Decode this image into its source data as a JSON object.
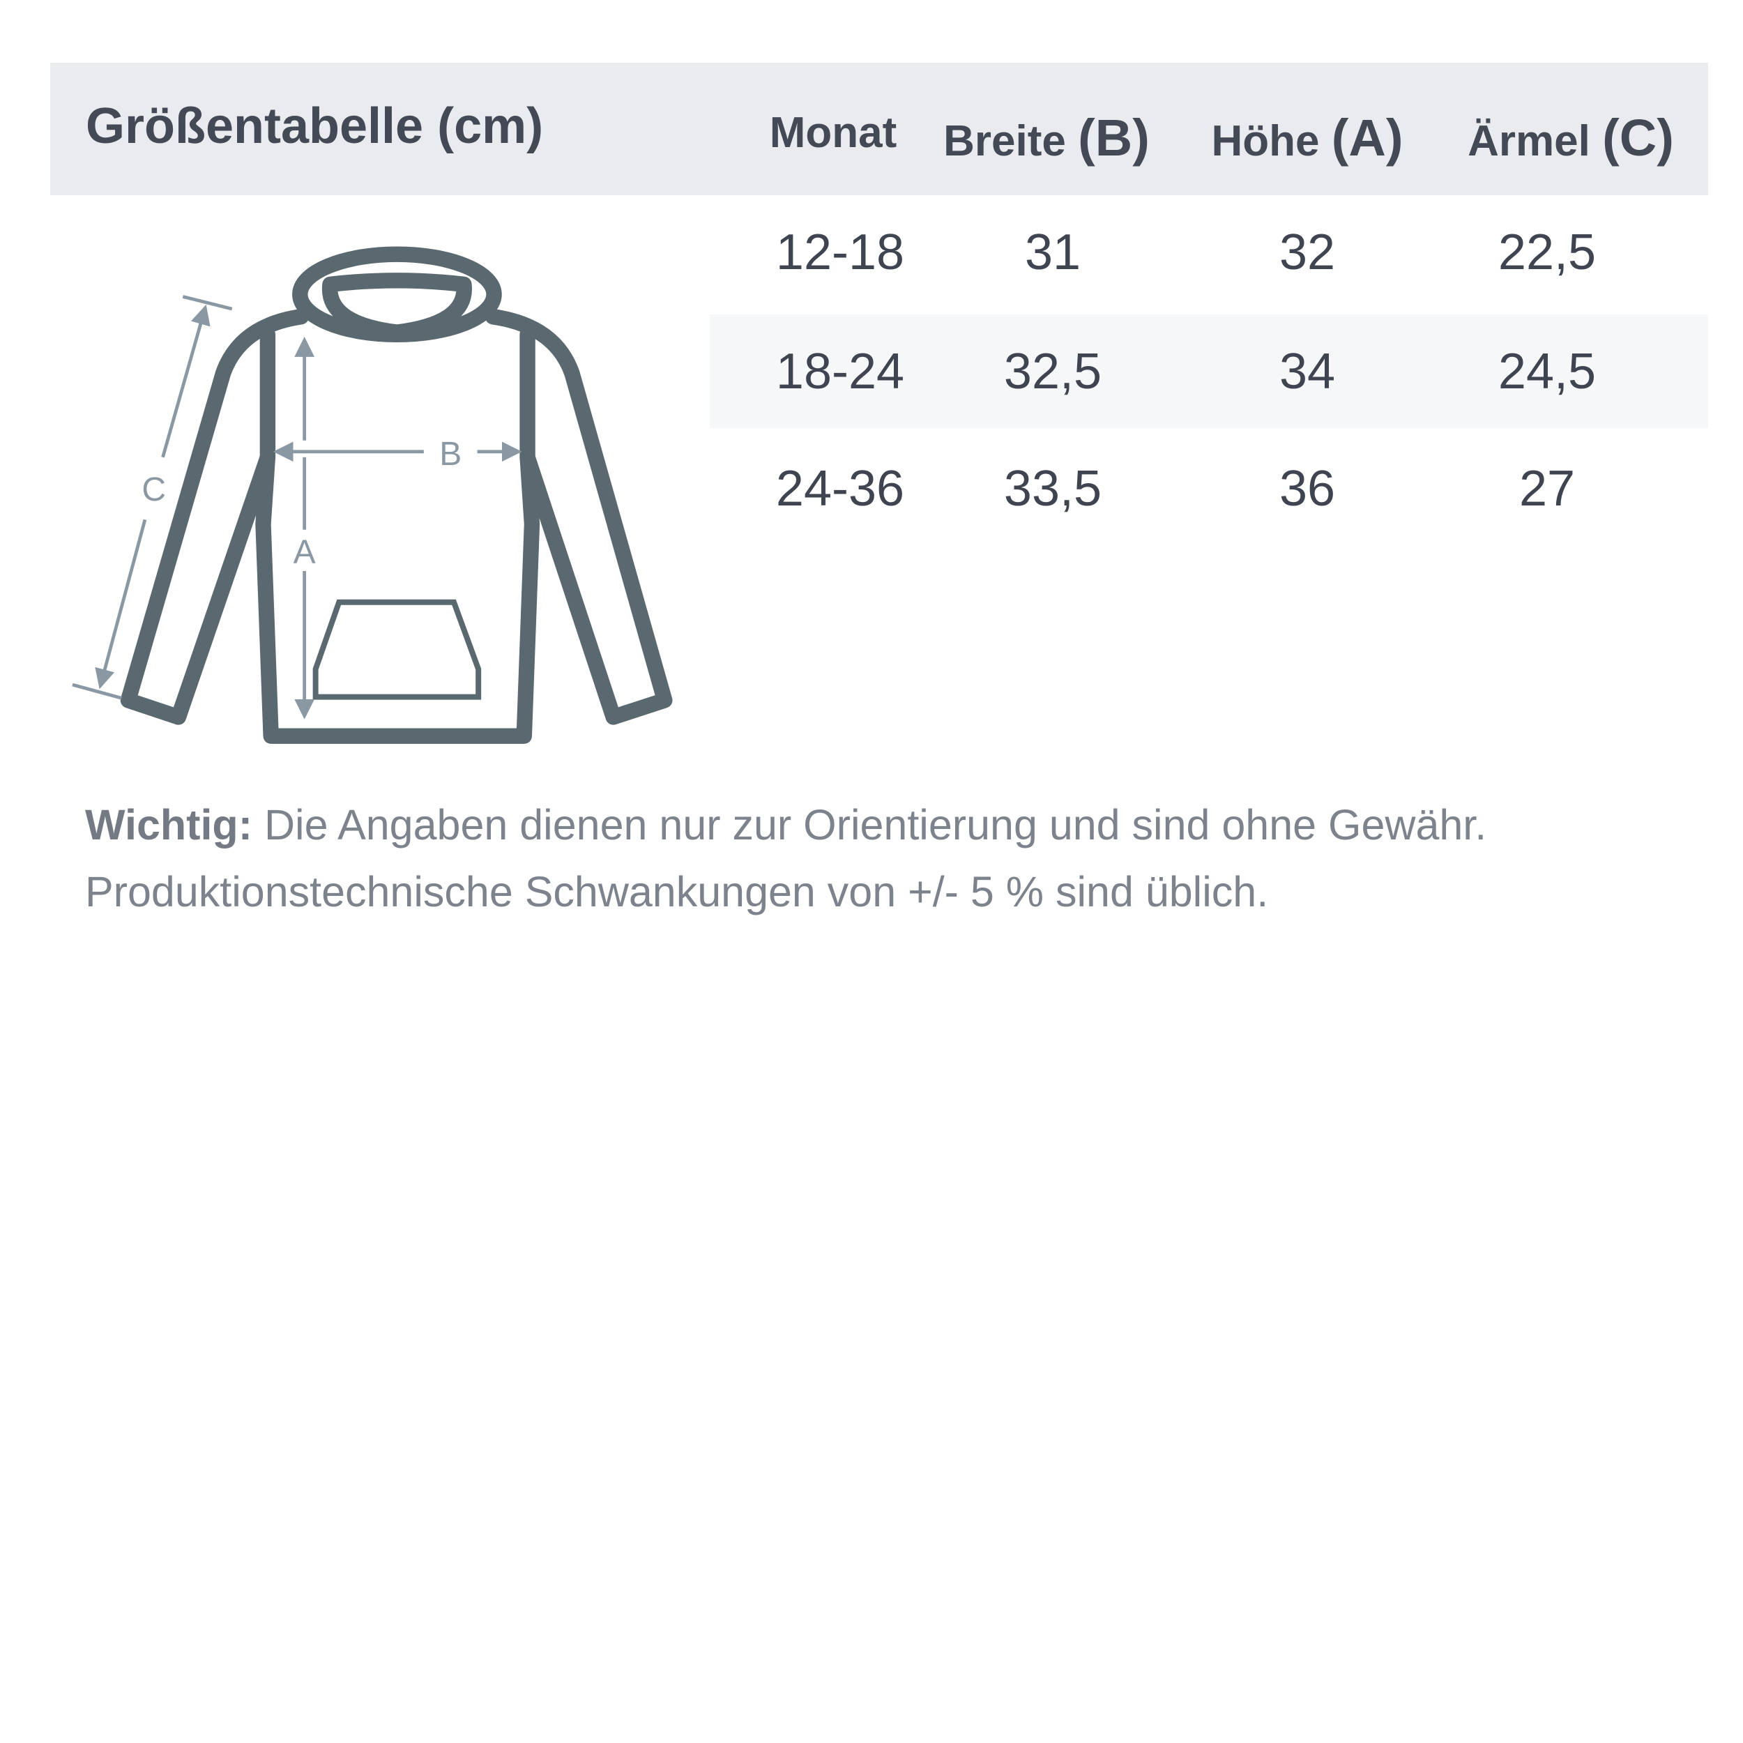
{
  "title": "Größentabelle (cm)",
  "columns": [
    {
      "label": "Monat",
      "suffix": ""
    },
    {
      "label": "Breite ",
      "suffix": "(B)"
    },
    {
      "label": "Höhe ",
      "suffix": "(A)"
    },
    {
      "label": "Ärmel ",
      "suffix": "(C)"
    }
  ],
  "rows": [
    [
      "12-18",
      "31",
      "32",
      "22,5"
    ],
    [
      "18-24",
      "32,5",
      "34",
      "24,5"
    ],
    [
      "24-36",
      "33,5",
      "36",
      "27"
    ]
  ],
  "diagram": {
    "label_a": "A",
    "label_b": "B",
    "label_c": "C",
    "icon": "hoodie-measurement-icon"
  },
  "note": {
    "bold": "Wichtig:",
    "line1": " Die Angaben dienen nur zur Orientierung und sind ohne Gewähr.",
    "line2": "Produktionstechnische Schwankungen von +/- 5 % sind üblich."
  },
  "colors": {
    "header_bg": "#e9ebef",
    "outline": "#5a6870",
    "measure": "#8a98a3"
  }
}
